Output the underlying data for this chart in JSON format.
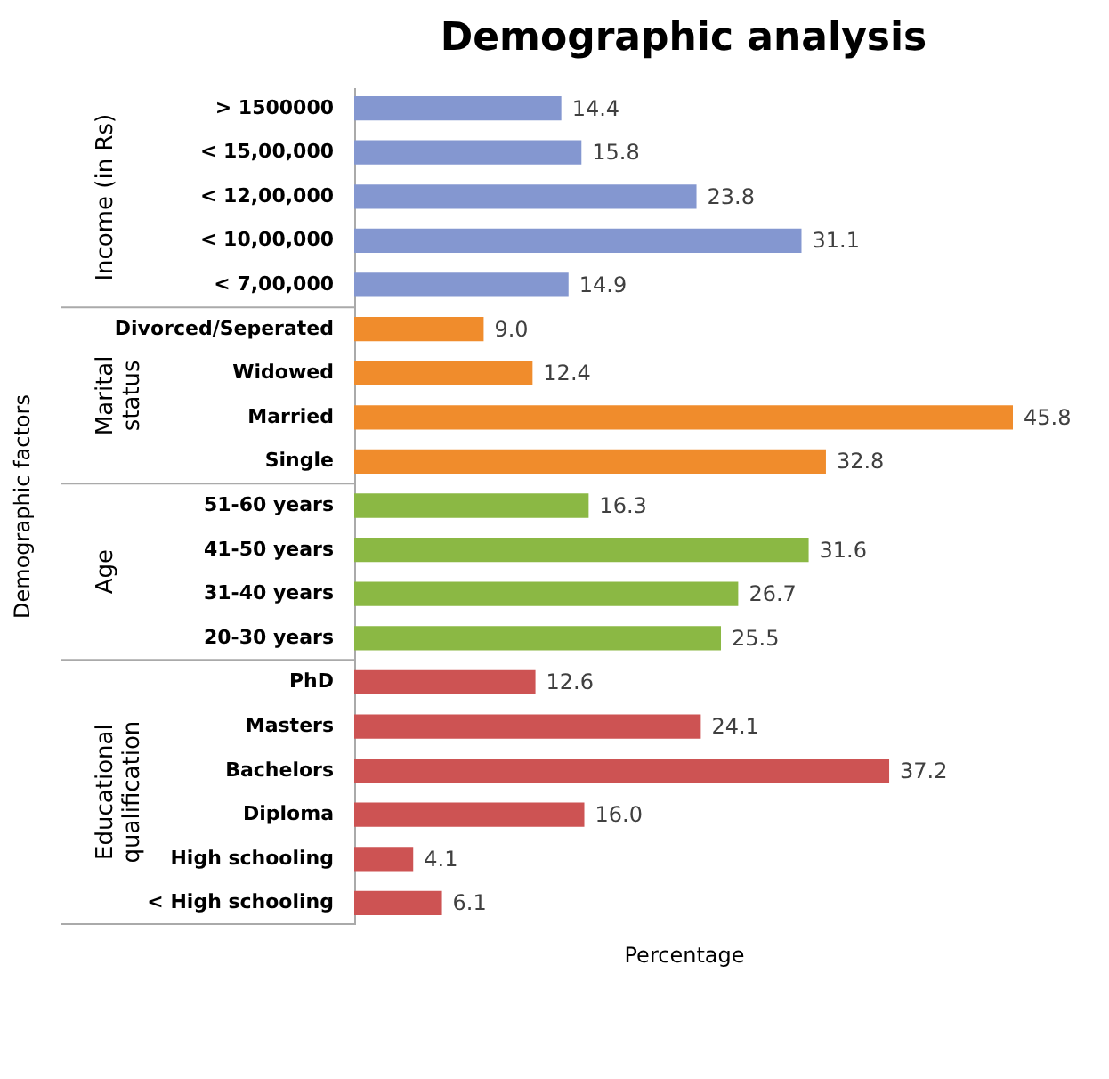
{
  "chart_data": {
    "type": "bar",
    "orientation": "horizontal",
    "title": "Demographic analysis",
    "xlabel": "Percentage",
    "ylabel": "Demographic factors",
    "categories": [
      "> 1500000",
      "< 15,00,000",
      "< 12,00,000",
      "< 10,00,000",
      "< 7,00,000",
      "Divorced/Seperated",
      "Widowed",
      "Married",
      "Single",
      "51-60 years",
      "41-50 years",
      "31-40 years",
      "20-30 years",
      "PhD",
      "Masters",
      "Bachelors",
      "Diploma",
      "High schooling",
      "< High schooling"
    ],
    "values": [
      14.4,
      15.8,
      23.8,
      31.1,
      14.9,
      9.0,
      12.4,
      45.8,
      32.8,
      16.3,
      31.6,
      26.7,
      25.5,
      12.6,
      24.1,
      37.2,
      16.0,
      4.1,
      6.1
    ],
    "value_labels": [
      "14.4",
      "15.8",
      "23.8",
      "31.1",
      "14.9",
      "9.0",
      "12.4",
      "45.8",
      "32.8",
      "16.3",
      "31.6",
      "26.7",
      "25.5",
      "12.6",
      "24.1",
      "37.2",
      "16.0",
      "4.1",
      "6.1"
    ],
    "colors": [
      "#8497d0",
      "#8497d0",
      "#8497d0",
      "#8497d0",
      "#8497d0",
      "#f08c2c",
      "#f08c2c",
      "#f08c2c",
      "#f08c2c",
      "#8bb844",
      "#8bb844",
      "#8bb844",
      "#8bb844",
      "#cd5353",
      "#cd5353",
      "#cd5353",
      "#cd5353",
      "#cd5353",
      "#cd5353"
    ],
    "annotations": [
      "Income (in Rs)",
      "Marital\nstatus",
      "Age",
      "Educational\nqualification"
    ],
    "grid": false
  }
}
